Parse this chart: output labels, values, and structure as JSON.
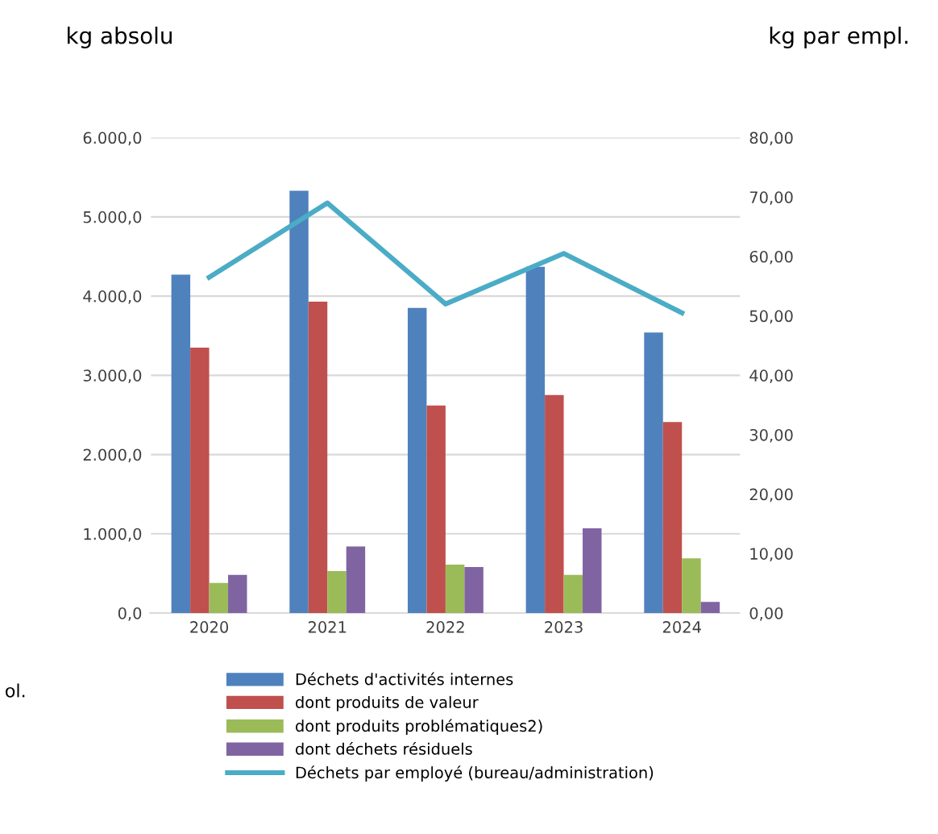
{
  "chart_data": {
    "type": "bar",
    "ylabel": "kg absolu",
    "y2label": "kg par empl.",
    "annotations": [
      "ol."
    ],
    "categories": [
      "2020",
      "2021",
      "2022",
      "2023",
      "2024"
    ],
    "series": [
      {
        "name": "Déchets d'activités internes",
        "color": "#4f81bd",
        "values": [
          4270,
          5330,
          3850,
          4370,
          3540
        ]
      },
      {
        "name": "dont produits de valeur",
        "color": "#c0504d",
        "values": [
          3350,
          3930,
          2620,
          2750,
          2410
        ]
      },
      {
        "name": "dont produits problématiques2)",
        "color": "#9bbb59",
        "values": [
          380,
          530,
          610,
          480,
          690
        ]
      },
      {
        "name": "dont déchets résiduels",
        "color": "#8064a2",
        "values": [
          480,
          840,
          580,
          1070,
          140
        ]
      },
      {
        "name": "Déchets par employé (bureau/administration)",
        "type": "line",
        "axis": "y2",
        "color": "#4bacc6",
        "marker": "none",
        "values": [
          56.5,
          69,
          52,
          60.5,
          50.5
        ]
      }
    ],
    "ylim": [
      0,
      6000
    ],
    "yticks": [
      {
        "value": 0,
        "label": "0,0"
      },
      {
        "value": 1000,
        "label": "1.000,0"
      },
      {
        "value": 2000,
        "label": "2.000,0"
      },
      {
        "value": 3000,
        "label": "3.000,0"
      },
      {
        "value": 4000,
        "label": "4.000,0"
      },
      {
        "value": 5000,
        "label": "5.000,0"
      },
      {
        "value": 6000,
        "label": "6.000,0"
      }
    ],
    "y2lim": [
      0,
      80
    ],
    "y2ticks": [
      {
        "value": 0,
        "label": "0,00"
      },
      {
        "value": 10,
        "label": "10,00"
      },
      {
        "value": 20,
        "label": "20,00"
      },
      {
        "value": 30,
        "label": "30,00"
      },
      {
        "value": 40,
        "label": "40,00"
      },
      {
        "value": 50,
        "label": "50,00"
      },
      {
        "value": 60,
        "label": "60,00"
      },
      {
        "value": 70,
        "label": "70,00"
      },
      {
        "value": 80,
        "label": "80,00"
      }
    ],
    "grid": "y",
    "legend": "bottom"
  }
}
